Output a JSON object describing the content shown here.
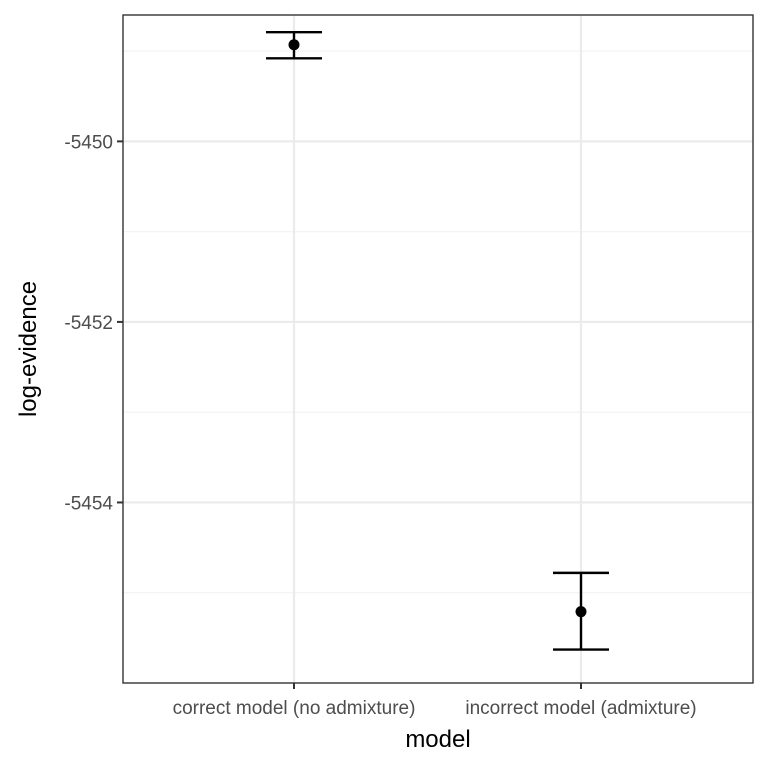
{
  "chart_data": {
    "type": "errorbar",
    "xlabel": "model",
    "ylabel": "log-evidence",
    "categories": [
      "correct model (no admixture)",
      "incorrect model (admixture)"
    ],
    "points": [
      {
        "category": "correct model (no admixture)",
        "y": -5448.93,
        "ymin": -5449.08,
        "ymax": -5448.79
      },
      {
        "category": "incorrect model (admixture)",
        "y": -5455.21,
        "ymin": -5455.63,
        "ymax": -5454.78
      }
    ],
    "ylim": [
      -5456.0,
      -5448.6
    ],
    "yticks": [
      -5450,
      -5452,
      -5454
    ],
    "ytick_labels": [
      "-5450",
      "-5452",
      "-5454"
    ],
    "grid": true,
    "theme": "bw",
    "colors": {
      "point": "#000000",
      "errorbar": "#000000",
      "grid_major": "#ebebeb",
      "grid_minor": "#f2f2f2",
      "panel_border": "#333333"
    }
  }
}
